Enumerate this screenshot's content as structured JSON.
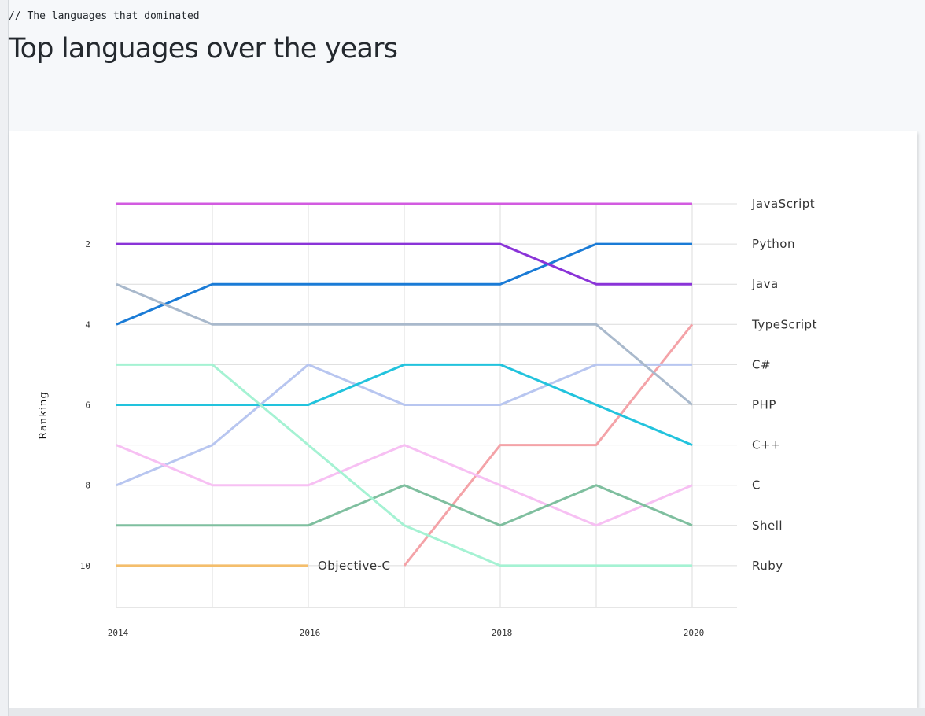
{
  "header": {
    "eyebrow": "// The languages that dominated",
    "title": "Top languages over the years"
  },
  "chart_data": {
    "type": "line",
    "title": "Top languages over the years",
    "ylabel": "Ranking",
    "xlabel": "",
    "x": [
      2014,
      2015,
      2016,
      2017,
      2018,
      2019,
      2020
    ],
    "xlim": [
      2014,
      2020
    ],
    "ylim": [
      11,
      1
    ],
    "y_reversed": true,
    "x_tick_labels": [
      "2014",
      "2016",
      "2018",
      "2020"
    ],
    "y_tick_labels": [
      "2",
      "4",
      "6",
      "8",
      "10"
    ],
    "grid": true,
    "legend": "right-end labels",
    "series": [
      {
        "name": "JavaScript",
        "color": "#d25be0",
        "values": [
          1,
          1,
          1,
          1,
          1,
          1,
          1
        ]
      },
      {
        "name": "Python",
        "color": "#1a7bd6",
        "values": [
          4,
          3,
          3,
          3,
          3,
          2,
          2
        ]
      },
      {
        "name": "Java",
        "color": "#8a34d8",
        "values": [
          2,
          2,
          2,
          2,
          2,
          3,
          3
        ]
      },
      {
        "name": "TypeScript",
        "color": "#f4a3a8",
        "values": [
          null,
          null,
          null,
          10,
          7,
          7,
          4
        ]
      },
      {
        "name": "C#",
        "color": "#b8c6f0",
        "values": [
          8,
          7,
          5,
          6,
          6,
          5,
          5
        ]
      },
      {
        "name": "PHP",
        "color": "#a9b9cc",
        "values": [
          3,
          4,
          4,
          4,
          4,
          4,
          6
        ]
      },
      {
        "name": "C++",
        "color": "#22c3dd",
        "values": [
          6,
          6,
          6,
          5,
          5,
          6,
          7
        ]
      },
      {
        "name": "C",
        "color": "#f7c0f3",
        "values": [
          7,
          8,
          8,
          7,
          8,
          9,
          8
        ]
      },
      {
        "name": "Shell",
        "color": "#7fbf9f",
        "values": [
          9,
          9,
          9,
          8,
          9,
          8,
          9
        ]
      },
      {
        "name": "Ruby",
        "color": "#a5f2d3",
        "values": [
          5,
          5,
          7,
          9,
          10,
          10,
          10
        ]
      },
      {
        "name": "Objective-C",
        "color": "#f4be6c",
        "values": [
          10,
          10,
          10,
          null,
          null,
          null,
          null
        ]
      }
    ],
    "end_labels": [
      "JavaScript",
      "Python",
      "Java",
      "TypeScript",
      "C#",
      "PHP",
      "C++",
      "C",
      "Shell",
      "Ruby"
    ],
    "inline_label": "Objective-C"
  }
}
